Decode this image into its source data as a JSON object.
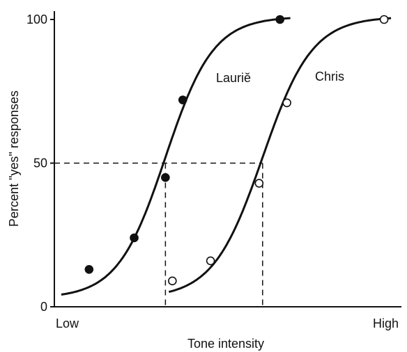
{
  "chart_data": {
    "type": "line",
    "title": "",
    "xlabel": "Tone intensity",
    "ylabel": "Percent \"yes\" responses",
    "x_tick_labels": {
      "low": "Low",
      "high": "High"
    },
    "y_ticks": [
      0,
      50,
      100
    ],
    "y_tick_labels": [
      "0",
      "50",
      "100"
    ],
    "xlim": [
      0,
      100
    ],
    "ylim": [
      0,
      100
    ],
    "grid": false,
    "legend": "none",
    "threshold_level": 50,
    "series": [
      {
        "name": "Lauriĕ",
        "marker": "filled-circle",
        "points": [
          {
            "x": 10,
            "y": 13
          },
          {
            "x": 23,
            "y": 24
          },
          {
            "x": 32,
            "y": 45
          },
          {
            "x": 37,
            "y": 72
          },
          {
            "x": 65,
            "y": 100
          }
        ],
        "curve": {
          "x_start": 2,
          "x_end": 68,
          "midpoint": 32,
          "slope": 0.145,
          "y_min": 3,
          "y_max": 101
        },
        "threshold_x": 32
      },
      {
        "name": "Chris",
        "marker": "open-circle",
        "points": [
          {
            "x": 34,
            "y": 9
          },
          {
            "x": 45,
            "y": 16
          },
          {
            "x": 59,
            "y": 43
          },
          {
            "x": 67,
            "y": 71
          },
          {
            "x": 95,
            "y": 100
          }
        ],
        "curve": {
          "x_start": 33,
          "x_end": 97,
          "midpoint": 60,
          "slope": 0.14,
          "y_min": 3,
          "y_max": 101
        },
        "threshold_x": 60
      }
    ]
  }
}
